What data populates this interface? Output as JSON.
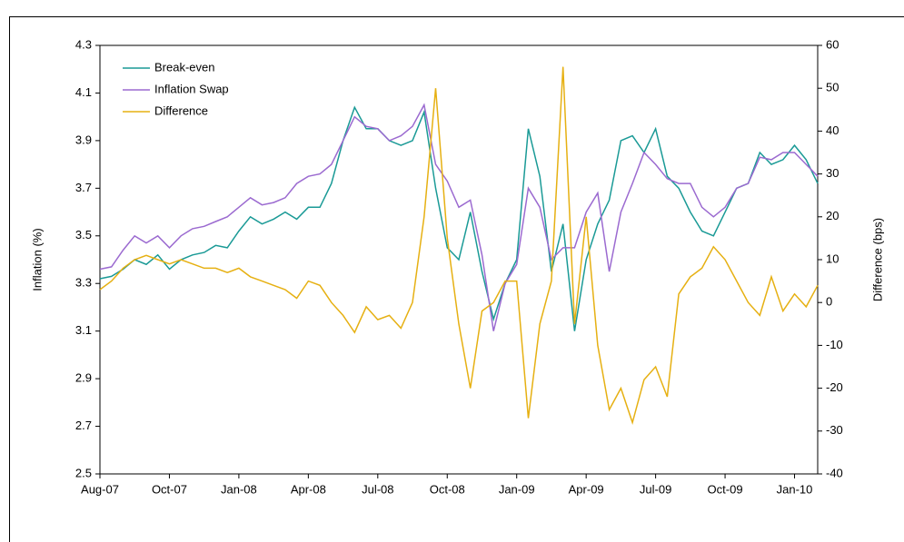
{
  "chart_data": {
    "type": "line",
    "y_label": "Inflation (%)",
    "y2_label": "Difference (bps)",
    "categories": [
      "Aug-07",
      null,
      null,
      null,
      null,
      null,
      "Oct-07",
      null,
      null,
      null,
      null,
      null,
      "Jan-08",
      null,
      null,
      null,
      null,
      null,
      "Apr-08",
      null,
      null,
      null,
      null,
      null,
      "Jul-08",
      null,
      null,
      null,
      null,
      null,
      "Oct-08",
      null,
      null,
      null,
      null,
      null,
      "Jan-09",
      null,
      null,
      null,
      null,
      null,
      "Apr-09",
      null,
      null,
      null,
      null,
      null,
      "Jul-09",
      null,
      null,
      null,
      null,
      null,
      "Oct-09",
      null,
      null,
      null,
      null,
      null,
      "Jan-10",
      null,
      null
    ],
    "series": [
      {
        "name": "Break-even",
        "color": "#1a9a96",
        "values": [
          3.32,
          3.33,
          3.36,
          3.4,
          3.38,
          3.42,
          3.36,
          3.4,
          3.42,
          3.43,
          3.46,
          3.45,
          3.52,
          3.58,
          3.55,
          3.57,
          3.6,
          3.57,
          3.62,
          3.62,
          3.72,
          3.9,
          4.04,
          3.95,
          3.95,
          3.9,
          3.88,
          3.9,
          4.02,
          3.7,
          3.45,
          3.4,
          3.6,
          3.35,
          3.15,
          3.3,
          3.4,
          3.95,
          3.75,
          3.35,
          3.55,
          3.1,
          3.4,
          3.55,
          3.65,
          3.9,
          3.92,
          3.85,
          3.95,
          3.75,
          3.7,
          3.6,
          3.52,
          3.5,
          3.6,
          3.7,
          3.72,
          3.85,
          3.8,
          3.82,
          3.88,
          3.82,
          3.72
        ]
      },
      {
        "name": "Inflation Swap",
        "color": "#9b6ad0",
        "values": [
          3.36,
          3.37,
          3.44,
          3.5,
          3.47,
          3.5,
          3.45,
          3.5,
          3.53,
          3.54,
          3.56,
          3.58,
          3.62,
          3.66,
          3.63,
          3.64,
          3.66,
          3.72,
          3.75,
          3.76,
          3.8,
          3.9,
          4.0,
          3.96,
          3.95,
          3.9,
          3.92,
          3.96,
          4.05,
          3.8,
          3.73,
          3.62,
          3.65,
          3.42,
          3.1,
          3.3,
          3.38,
          3.7,
          3.62,
          3.4,
          3.45,
          3.45,
          3.6,
          3.68,
          3.35,
          3.6,
          3.72,
          3.85,
          3.8,
          3.74,
          3.72,
          3.72,
          3.62,
          3.58,
          3.62,
          3.7,
          3.72,
          3.83,
          3.82,
          3.85,
          3.85,
          3.8,
          3.75
        ]
      },
      {
        "name": "Difference",
        "color": "#e6b012",
        "axis": "y2",
        "values": [
          3,
          5,
          8,
          10,
          11,
          10,
          9,
          10,
          9,
          8,
          8,
          7,
          8,
          6,
          5,
          4,
          3,
          1,
          5,
          4,
          0,
          -3,
          -7,
          -1,
          -4,
          -3,
          -6,
          0,
          20,
          50,
          15,
          -5,
          -20,
          -2,
          0,
          5,
          5,
          -27,
          -5,
          5,
          55,
          -5,
          20,
          -10,
          -25,
          -20,
          -28,
          -18,
          -15,
          -22,
          2,
          6,
          8,
          13,
          10,
          5,
          0,
          -3,
          6,
          -2,
          2,
          -1,
          4
        ]
      }
    ],
    "ylim": [
      2.5,
      4.3
    ],
    "yticks": [
      2.5,
      2.7,
      2.9,
      3.1,
      3.3,
      3.5,
      3.7,
      3.9,
      4.1,
      4.3
    ],
    "y2lim": [
      -40,
      60
    ],
    "y2ticks": [
      -40,
      -30,
      -20,
      -10,
      0,
      10,
      20,
      30,
      40,
      50,
      60
    ],
    "legend": "upper-left"
  }
}
